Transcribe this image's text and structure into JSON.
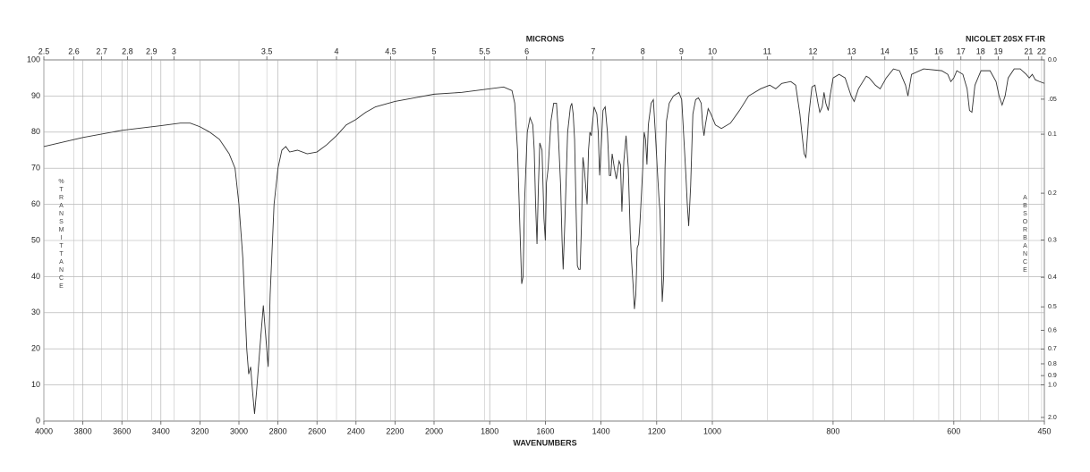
{
  "chart_data": {
    "type": "line",
    "top_axis_label": "MICRONS",
    "annotation": "NICOLET 20SX FT-IR",
    "xlabel": "WAVENUMBERS",
    "ylabel": "%TRANSMITTANCE",
    "y2label": "ABSORBANCE",
    "xlim": [
      4000,
      450
    ],
    "x_scale_breaks": [
      2000,
      1000
    ],
    "xticks": [
      4000,
      3800,
      3600,
      3400,
      3200,
      3000,
      2800,
      2600,
      2400,
      2200,
      2000,
      1800,
      1600,
      1400,
      1200,
      1000,
      800,
      600,
      450
    ],
    "x2ticks": [
      2.5,
      2.6,
      2.7,
      2.8,
      2.9,
      3,
      3.5,
      4,
      4.5,
      5,
      5.5,
      6,
      7,
      8,
      9,
      10,
      11,
      12,
      13,
      14,
      15,
      16,
      17,
      18,
      19,
      21,
      22
    ],
    "ylim": [
      0,
      100
    ],
    "yticks": [
      0,
      10,
      20,
      30,
      40,
      50,
      60,
      70,
      80,
      90,
      100
    ],
    "y2_scale": "absorbance",
    "y2ticks": [
      {
        "value": 0,
        "label": "0.0"
      },
      {
        "value": 0.05,
        "label": ".05"
      },
      0.1,
      0.2,
      0.3,
      0.4,
      0.5,
      0.6,
      0.7,
      0.8,
      0.9,
      {
        "value": 1,
        "label": "1.0"
      },
      {
        "value": 2,
        "label": "2.0"
      }
    ],
    "grid": true,
    "x": [
      4000,
      3800,
      3600,
      3400,
      3300,
      3250,
      3200,
      3150,
      3100,
      3050,
      3020,
      3000,
      2980,
      2960,
      2950,
      2940,
      2930,
      2920,
      2910,
      2890,
      2875,
      2865,
      2850,
      2840,
      2820,
      2800,
      2780,
      2760,
      2740,
      2700,
      2650,
      2600,
      2550,
      2500,
      2450,
      2400,
      2350,
      2300,
      2200,
      2100,
      2000,
      1900,
      1800,
      1750,
      1720,
      1710,
      1700,
      1690,
      1685,
      1680,
      1675,
      1665,
      1655,
      1645,
      1640,
      1635,
      1630,
      1625,
      1620,
      1612,
      1605,
      1600,
      1596,
      1590,
      1580,
      1570,
      1560,
      1555,
      1545,
      1540,
      1536,
      1530,
      1520,
      1510,
      1505,
      1500,
      1495,
      1490,
      1485,
      1480,
      1475,
      1470,
      1465,
      1460,
      1455,
      1450,
      1445,
      1440,
      1435,
      1425,
      1415,
      1410,
      1405,
      1400,
      1393,
      1385,
      1377,
      1370,
      1365,
      1360,
      1352,
      1345,
      1335,
      1330,
      1325,
      1318,
      1310,
      1302,
      1295,
      1290,
      1285,
      1280,
      1275,
      1270,
      1265,
      1260,
      1250,
      1245,
      1240,
      1235,
      1230,
      1220,
      1212,
      1205,
      1198,
      1192,
      1188,
      1185,
      1180,
      1175,
      1170,
      1165,
      1155,
      1140,
      1120,
      1110,
      1100,
      1095,
      1090,
      1085,
      1078,
      1070,
      1060,
      1050,
      1040,
      1035,
      1030,
      1025,
      1015,
      1005,
      995,
      985,
      970,
      955,
      940,
      920,
      905,
      895,
      885,
      870,
      862,
      855,
      848,
      845,
      840,
      835,
      830,
      825,
      822,
      818,
      815,
      812,
      808,
      805,
      800,
      790,
      780,
      770,
      765,
      758,
      745,
      740,
      730,
      722,
      712,
      700,
      690,
      680,
      676,
      670,
      650,
      620,
      610,
      605,
      600,
      595,
      585,
      578,
      574,
      570,
      565,
      555,
      540,
      530,
      525,
      520,
      515,
      510,
      500,
      490,
      480,
      475,
      470,
      465,
      458,
      450
    ],
    "series": [
      {
        "color": "#333333",
        "values": [
          76,
          78.5,
          80.5,
          81.8,
          82.5,
          82.5,
          81.5,
          80,
          78,
          74,
          70,
          60,
          45,
          20,
          13,
          15,
          8,
          2,
          8,
          22,
          32,
          25,
          15,
          35,
          60,
          70,
          75,
          76,
          74.5,
          75,
          74,
          74.5,
          76.5,
          79,
          82,
          83.5,
          85.5,
          87,
          88.5,
          89.5,
          90.5,
          91,
          92,
          92.5,
          91.5,
          88,
          75,
          50,
          38,
          40,
          60,
          80,
          84,
          82,
          75,
          60,
          49,
          65,
          77,
          75,
          56,
          50,
          66,
          70,
          83,
          88,
          88,
          82,
          65,
          50,
          42,
          55,
          80,
          87,
          88,
          85,
          78,
          60,
          43,
          42,
          42,
          55,
          73,
          70,
          65,
          60,
          75,
          80,
          79,
          87,
          85,
          80,
          68,
          75,
          86,
          87,
          80,
          68,
          68,
          74,
          70,
          67,
          72,
          71,
          58,
          72,
          79,
          70,
          52,
          44,
          38,
          31,
          35,
          48,
          49,
          55,
          70,
          80,
          78,
          71,
          82,
          88,
          89,
          80,
          70,
          62,
          58,
          50,
          33,
          40,
          70,
          83,
          88,
          90,
          91,
          89,
          75,
          68,
          60,
          54,
          65,
          85,
          89,
          89.5,
          88,
          82,
          79,
          82,
          86.5,
          85,
          82,
          81,
          82.5,
          86,
          90,
          92,
          93,
          92,
          93.5,
          94,
          93,
          85,
          74,
          73,
          85,
          92.5,
          93,
          88,
          85.5,
          87,
          91,
          88,
          86,
          90,
          95,
          96,
          95,
          90,
          88.5,
          92,
          95.5,
          95,
          93,
          92,
          95,
          97.5,
          97,
          93,
          90,
          96,
          97.5,
          97,
          96,
          94,
          95,
          97,
          96,
          92,
          86,
          85.5,
          93,
          97,
          97,
          94,
          90,
          87.5,
          90,
          95,
          97.5,
          97.5,
          96,
          95,
          96,
          94.5,
          94,
          93.5
        ]
      }
    ]
  }
}
